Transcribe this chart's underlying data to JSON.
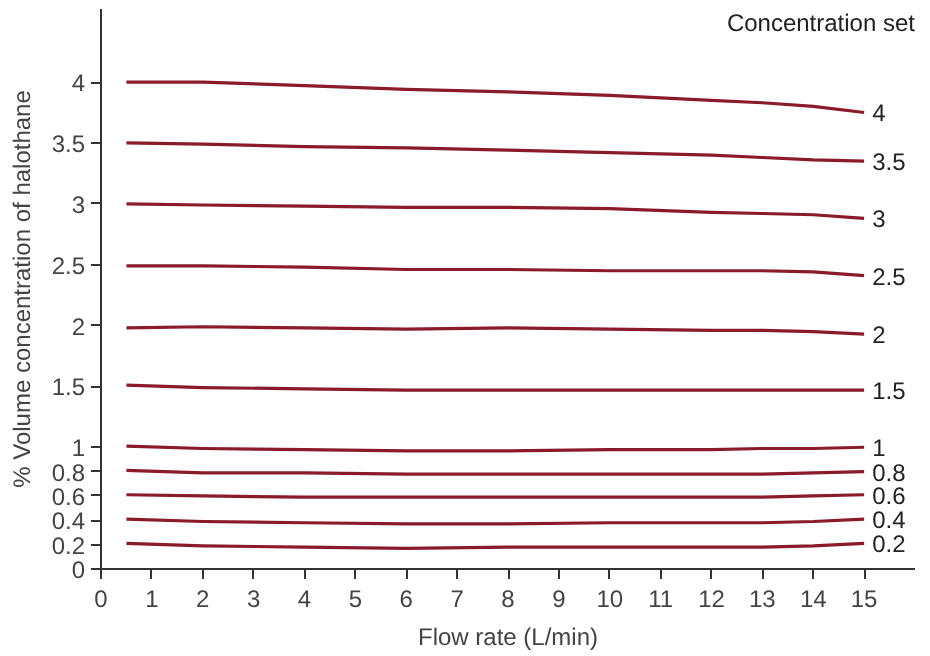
{
  "chart_data": {
    "type": "line",
    "xlabel": "Flow rate (L/min)",
    "ylabel": "% Volume concentration of halothane",
    "legend_title": "Concentration set",
    "x": [
      0.5,
      2,
      4,
      6,
      8,
      10,
      12,
      13,
      14,
      15
    ],
    "xlim": [
      0,
      16
    ],
    "ylim": [
      0,
      4.6
    ],
    "xticks": [
      0,
      1,
      2,
      3,
      4,
      5,
      6,
      7,
      8,
      9,
      10,
      11,
      12,
      13,
      14,
      15
    ],
    "yticks": [
      0,
      0.2,
      0.4,
      0.6,
      0.8,
      1,
      1.5,
      2,
      2.5,
      3,
      3.5,
      4
    ],
    "grid": false,
    "legend": "right",
    "series": [
      {
        "name": "4",
        "color": "#8b1a2b",
        "values": [
          4.0,
          4.0,
          3.97,
          3.94,
          3.92,
          3.89,
          3.85,
          3.83,
          3.8,
          3.75
        ]
      },
      {
        "name": "3.5",
        "color": "#8b1a2b",
        "values": [
          3.5,
          3.49,
          3.47,
          3.46,
          3.44,
          3.42,
          3.4,
          3.38,
          3.36,
          3.35
        ]
      },
      {
        "name": "3",
        "color": "#8b1a2b",
        "values": [
          3.0,
          2.99,
          2.98,
          2.97,
          2.97,
          2.96,
          2.93,
          2.92,
          2.91,
          2.88
        ]
      },
      {
        "name": "2.5",
        "color": "#8b1a2b",
        "values": [
          2.49,
          2.49,
          2.48,
          2.46,
          2.46,
          2.45,
          2.45,
          2.45,
          2.44,
          2.41
        ]
      },
      {
        "name": "2",
        "color": "#8b1a2b",
        "values": [
          1.98,
          1.99,
          1.98,
          1.97,
          1.98,
          1.97,
          1.96,
          1.96,
          1.95,
          1.93
        ]
      },
      {
        "name": "1.5",
        "color": "#8b1a2b",
        "values": [
          1.51,
          1.49,
          1.48,
          1.47,
          1.47,
          1.47,
          1.47,
          1.47,
          1.47,
          1.47
        ]
      },
      {
        "name": "1",
        "color": "#8b1a2b",
        "values": [
          1.01,
          0.99,
          0.98,
          0.97,
          0.97,
          0.98,
          0.98,
          0.99,
          0.99,
          1.0
        ]
      },
      {
        "name": "0.8",
        "color": "#8b1a2b",
        "values": [
          0.81,
          0.79,
          0.79,
          0.78,
          0.78,
          0.78,
          0.78,
          0.78,
          0.79,
          0.8
        ]
      },
      {
        "name": "0.6",
        "color": "#8b1a2b",
        "values": [
          0.61,
          0.6,
          0.59,
          0.59,
          0.59,
          0.59,
          0.59,
          0.59,
          0.6,
          0.61
        ]
      },
      {
        "name": "0.4",
        "color": "#8b1a2b",
        "values": [
          0.41,
          0.39,
          0.38,
          0.37,
          0.37,
          0.38,
          0.38,
          0.38,
          0.39,
          0.41
        ]
      },
      {
        "name": "0.2",
        "color": "#8b1a2b",
        "values": [
          0.21,
          0.19,
          0.18,
          0.17,
          0.18,
          0.18,
          0.18,
          0.18,
          0.19,
          0.21
        ]
      }
    ]
  }
}
